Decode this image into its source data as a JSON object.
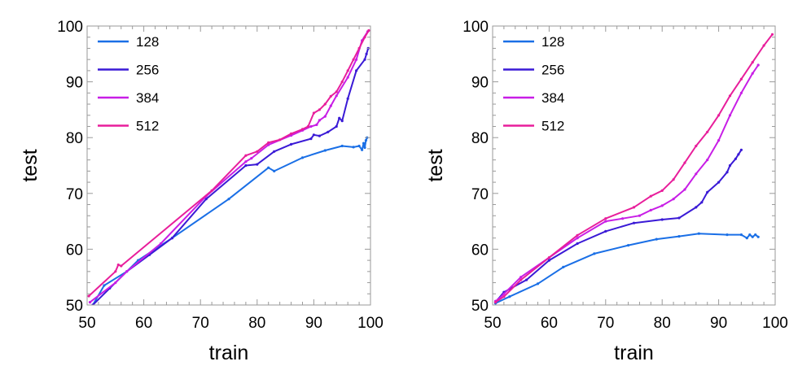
{
  "chart_data": [
    {
      "type": "line",
      "xlabel": "train",
      "ylabel": "test",
      "xlim": [
        50,
        100
      ],
      "ylim": [
        50,
        100
      ],
      "xticks": [
        "50",
        "60",
        "70",
        "80",
        "90",
        "100"
      ],
      "yticks": [
        "50",
        "60",
        "70",
        "80",
        "90",
        "100"
      ],
      "grid": false,
      "legend_position": "top-left",
      "series": [
        {
          "name": "128",
          "color": "#1a6fe6",
          "x": [
            51,
            53,
            57,
            59,
            65,
            75,
            82,
            83,
            88,
            92,
            95,
            97,
            98,
            98.5,
            98.8,
            99,
            99.2,
            99.4
          ],
          "y": [
            50,
            53.5,
            56,
            58,
            62,
            69,
            74.6,
            74,
            76.4,
            77.7,
            78.5,
            78.3,
            78.5,
            77.8,
            79,
            78.2,
            79.5,
            80
          ]
        },
        {
          "name": "256",
          "color": "#3a1ad6",
          "x": [
            51,
            54,
            57,
            61,
            65,
            71,
            78,
            80,
            83,
            86,
            89.5,
            90,
            91,
            92.5,
            94,
            94.5,
            95,
            96,
            97.5,
            99,
            99.3,
            99.6
          ],
          "y": [
            50,
            53,
            56,
            59,
            62,
            69,
            75,
            75.2,
            77.5,
            78.8,
            79.8,
            80.5,
            80.3,
            81,
            82,
            83.5,
            83,
            87,
            92,
            94,
            95,
            96
          ]
        },
        {
          "name": "384",
          "color": "#c81ee6",
          "x": [
            50.5,
            55,
            57,
            63,
            71,
            78,
            79,
            82,
            86,
            88,
            89.5,
            90.5,
            91,
            92,
            93,
            94,
            96,
            97.5,
            98.5,
            99.5
          ],
          "y": [
            50.5,
            54,
            56,
            61,
            69.5,
            75.7,
            76.3,
            78.7,
            80.4,
            81.3,
            82,
            82.3,
            83.1,
            83.8,
            85.7,
            87.5,
            90.8,
            94,
            97.4,
            99
          ]
        },
        {
          "name": "512",
          "color": "#e81e9b",
          "x": [
            50.3,
            55,
            55.5,
            56,
            72,
            78,
            80,
            82,
            84,
            86,
            88,
            89,
            90,
            91,
            92,
            93,
            94,
            95,
            96,
            97,
            98,
            99,
            99.7
          ],
          "y": [
            51.6,
            56,
            57.2,
            57,
            70.5,
            76.8,
            77.5,
            79.1,
            79.6,
            80.7,
            81.5,
            82,
            84.4,
            85,
            86,
            87.4,
            88.2,
            90,
            92,
            94,
            96,
            98,
            99.2
          ]
        }
      ]
    },
    {
      "type": "line",
      "xlabel": "train",
      "ylabel": "test",
      "xlim": [
        50,
        100
      ],
      "ylim": [
        50,
        100
      ],
      "xticks": [
        "50",
        "60",
        "70",
        "80",
        "90",
        "100"
      ],
      "yticks": [
        "50",
        "60",
        "70",
        "80",
        "90",
        "100"
      ],
      "grid": false,
      "legend_position": "top-left",
      "series": [
        {
          "name": "128",
          "color": "#1a6fe6",
          "x": [
            50.5,
            53,
            58,
            62.5,
            68,
            74,
            79,
            83,
            86.5,
            91.5,
            94,
            95,
            95.5,
            96,
            96.5,
            97
          ],
          "y": [
            50.3,
            51.5,
            53.8,
            56.8,
            59.2,
            60.7,
            61.8,
            62.3,
            62.8,
            62.6,
            62.6,
            62,
            62.6,
            62.2,
            62.6,
            62.2
          ]
        },
        {
          "name": "256",
          "color": "#3a1ad6",
          "x": [
            50.5,
            52,
            56,
            60,
            65,
            70,
            75,
            80,
            83,
            86,
            87,
            88,
            90,
            91.5,
            92,
            93,
            93.5,
            94
          ],
          "y": [
            50.5,
            52.3,
            54.5,
            58,
            61,
            63.2,
            64.7,
            65.3,
            65.6,
            67.5,
            68.4,
            70.2,
            72,
            73.8,
            75,
            76.2,
            77,
            77.8
          ]
        },
        {
          "name": "384",
          "color": "#c81ee6",
          "x": [
            50.5,
            51,
            52,
            55,
            60,
            65,
            70,
            73,
            76,
            78,
            80,
            82,
            84,
            86,
            88,
            90,
            92,
            94,
            96,
            97
          ],
          "y": [
            50.7,
            51,
            52,
            55,
            58.5,
            62,
            65,
            65.5,
            66,
            67,
            67.8,
            69,
            70.7,
            73.5,
            76,
            79.5,
            84,
            88,
            91.5,
            93
          ]
        },
        {
          "name": "512",
          "color": "#e81e9b",
          "x": [
            50.5,
            52,
            55,
            60,
            65,
            70,
            75,
            78,
            80,
            82,
            84,
            86,
            88,
            90,
            92,
            94,
            96,
            98,
            99.5
          ],
          "y": [
            50.5,
            51.5,
            54.5,
            58.5,
            62.5,
            65.5,
            67.5,
            69.5,
            70.5,
            72.5,
            75.5,
            78.5,
            81,
            84,
            87.5,
            90.5,
            93.5,
            96.5,
            98.5
          ]
        }
      ]
    }
  ]
}
